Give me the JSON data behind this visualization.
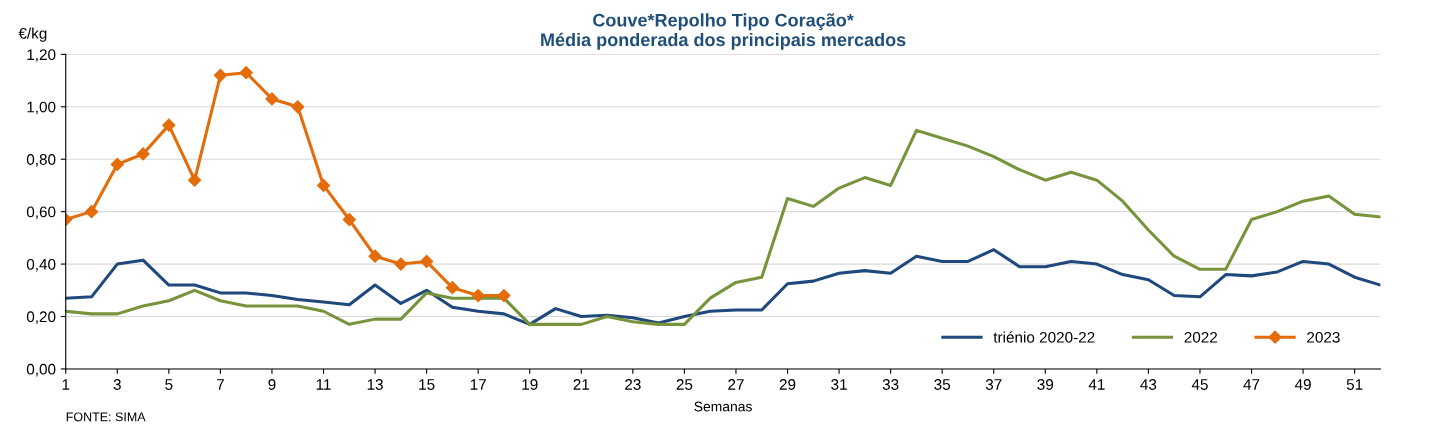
{
  "chart_data": {
    "type": "line",
    "title": "Couve*Repolho Tipo Coração*\nMédia ponderada dos principais mercados",
    "xlabel": "Semanas",
    "ylabel": "€/kg",
    "annotations": [
      "FONTE: SIMA"
    ],
    "x": [
      1,
      2,
      3,
      4,
      5,
      6,
      7,
      8,
      9,
      10,
      11,
      12,
      13,
      14,
      15,
      16,
      17,
      18,
      19,
      20,
      21,
      22,
      23,
      24,
      25,
      26,
      27,
      28,
      29,
      30,
      31,
      32,
      33,
      34,
      35,
      36,
      37,
      38,
      39,
      40,
      41,
      42,
      43,
      44,
      45,
      46,
      47,
      48,
      49,
      50,
      51,
      52
    ],
    "series": [
      {
        "name": "triénio 2020-22",
        "color": "#1f497d",
        "marker": "none",
        "values": [
          0.27,
          0.275,
          0.4,
          0.415,
          0.32,
          0.32,
          0.29,
          0.29,
          0.28,
          0.265,
          0.255,
          0.245,
          0.32,
          0.25,
          0.3,
          0.235,
          0.22,
          0.21,
          0.17,
          0.23,
          0.2,
          0.205,
          0.195,
          0.175,
          0.2,
          0.22,
          0.225,
          0.225,
          0.325,
          0.335,
          0.365,
          0.375,
          0.365,
          0.43,
          0.41,
          0.41,
          0.455,
          0.39,
          0.39,
          0.41,
          0.4,
          0.36,
          0.34,
          0.28,
          0.275,
          0.36,
          0.355,
          0.37,
          0.41,
          0.4,
          0.35,
          0.32
        ]
      },
      {
        "name": "2022",
        "color": "#77933c",
        "marker": "none",
        "values": [
          0.22,
          0.21,
          0.21,
          0.24,
          0.26,
          0.3,
          0.26,
          0.24,
          0.24,
          0.24,
          0.22,
          0.17,
          0.19,
          0.19,
          0.29,
          0.27,
          0.27,
          0.27,
          0.17,
          0.17,
          0.17,
          0.2,
          0.18,
          0.17,
          0.17,
          0.27,
          0.33,
          0.35,
          0.65,
          0.62,
          0.69,
          0.73,
          0.7,
          0.91,
          0.88,
          0.85,
          0.81,
          0.76,
          0.72,
          0.75,
          0.72,
          0.64,
          0.53,
          0.43,
          0.38,
          0.38,
          0.57,
          0.6,
          0.64,
          0.66,
          0.59,
          0.58
        ]
      },
      {
        "name": "2023",
        "color": "#e46c0a",
        "marker": "diamond",
        "values": [
          0.57,
          0.6,
          0.78,
          0.82,
          0.93,
          0.72,
          1.12,
          1.13,
          1.03,
          1.0,
          0.7,
          0.57,
          0.43,
          0.4,
          0.41,
          0.31,
          0.28,
          0.28,
          null,
          null,
          null,
          null,
          null,
          null,
          null,
          null,
          null,
          null,
          null,
          null,
          null,
          null,
          null,
          null,
          null,
          null,
          null,
          null,
          null,
          null,
          null,
          null,
          null,
          null,
          null,
          null,
          null,
          null,
          null,
          null,
          null,
          null
        ]
      }
    ],
    "xlim": [
      1,
      52
    ],
    "xticks": [
      1,
      3,
      5,
      7,
      9,
      11,
      13,
      15,
      17,
      19,
      21,
      23,
      25,
      27,
      29,
      31,
      33,
      35,
      37,
      39,
      41,
      43,
      45,
      47,
      49,
      51
    ],
    "ylim": [
      0,
      1.2
    ],
    "yticks": [
      {
        "value": 0,
        "label": "0,00"
      },
      {
        "value": 0.2,
        "label": "0,20"
      },
      {
        "value": 0.4,
        "label": "0,40"
      },
      {
        "value": 0.6,
        "label": "0,60"
      },
      {
        "value": 0.8,
        "label": "0,80"
      },
      {
        "value": 1.0,
        "label": "1,00"
      },
      {
        "value": 1.2,
        "label": "1,20"
      }
    ],
    "grid": "y",
    "legend": "bottom right",
    "line_style": "solid"
  }
}
